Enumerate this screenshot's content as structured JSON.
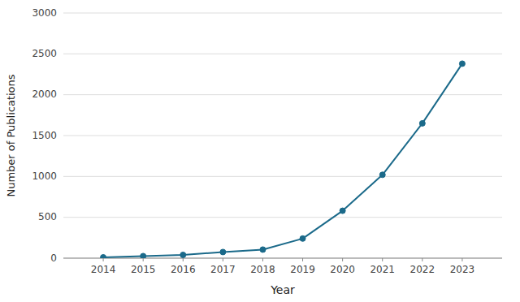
{
  "chart_data": {
    "type": "line",
    "x": [
      2014,
      2015,
      2016,
      2017,
      2018,
      2019,
      2020,
      2021,
      2022,
      2023
    ],
    "values": [
      10,
      25,
      40,
      75,
      105,
      240,
      580,
      1020,
      1650,
      2380
    ],
    "color": "#1B6A8A",
    "marker": "circle",
    "xlabel": "Year",
    "ylabel": "Number of Publications",
    "xlim": [
      2013,
      2024
    ],
    "xticks": [
      2014,
      2015,
      2016,
      2017,
      2018,
      2019,
      2020,
      2021,
      2022,
      2023
    ],
    "ylim": [
      0,
      3000
    ],
    "yticks": [
      0,
      500,
      1000,
      1500,
      2000,
      2500,
      3000
    ],
    "grid": "y"
  }
}
